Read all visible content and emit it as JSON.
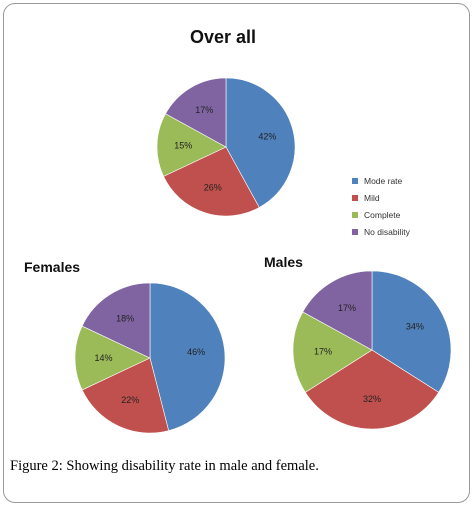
{
  "colors": {
    "Moderate": "#4f81bd",
    "Mild": "#c0504d",
    "Complete": "#9bbb59",
    "No disability": "#8064a2"
  },
  "legend": [
    "Moderate",
    "Mild",
    "Complete",
    "No disability"
  ],
  "caption": {
    "label": "Figure 2",
    "text": ": Showing disability rate in male and female."
  },
  "chart_data": [
    {
      "type": "pie",
      "title": "Over all",
      "categories": [
        "Moderate",
        "Mild",
        "Complete",
        "No disability"
      ],
      "values": [
        42,
        26,
        15,
        17
      ],
      "labels": [
        "42%",
        "26%",
        "15%",
        "17%"
      ],
      "legend": "right"
    },
    {
      "type": "pie",
      "title": "Females",
      "categories": [
        "Moderate",
        "Mild",
        "Complete",
        "No disability"
      ],
      "values": [
        46,
        22,
        14,
        18
      ],
      "labels": [
        "46%",
        "22%",
        "14%",
        "18%"
      ]
    },
    {
      "type": "pie",
      "title": "Males",
      "categories": [
        "Moderate",
        "Mild",
        "Complete",
        "No disability"
      ],
      "values": [
        34,
        32,
        17,
        17
      ],
      "labels": [
        "34%",
        "32%",
        "17%",
        "17%"
      ]
    }
  ]
}
